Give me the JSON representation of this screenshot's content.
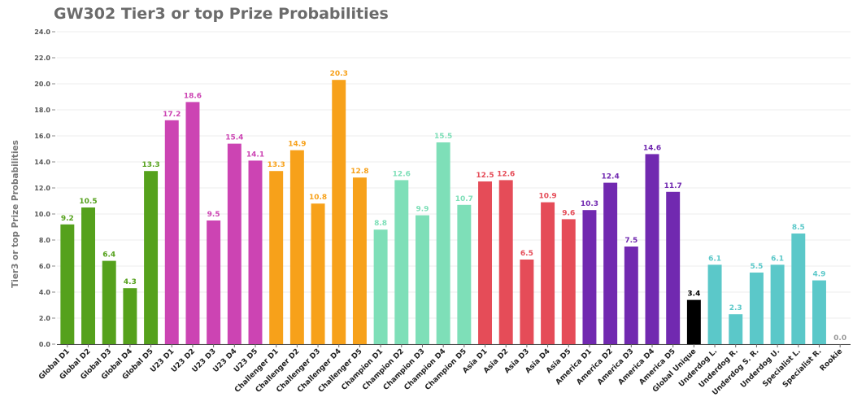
{
  "chart_data": {
    "type": "bar",
    "title": "GW302 Tier3 or top Prize Probabilities",
    "ylabel": "Tier3 or top Prize Probabilities",
    "xlabel": "",
    "ylim": [
      0,
      24
    ],
    "yticks": [
      "0.0",
      "2.0",
      "4.0",
      "6.0",
      "8.0",
      "10.0",
      "12.0",
      "14.0",
      "16.0",
      "18.0",
      "20.0",
      "22.0",
      "24.0"
    ],
    "grid": true,
    "categories": [
      "Global D1",
      "Global D2",
      "Global D3",
      "Global D4",
      "Global D5",
      "U23 D1",
      "U23 D2",
      "U23 D3",
      "U23 D4",
      "U23 D5",
      "Challenger D1",
      "Challenger D2",
      "Challenger D3",
      "Challenger D4",
      "Challenger D5",
      "Champion D1",
      "Champion D2",
      "Champion D3",
      "Champion D4",
      "Champion D5",
      "Asia D1",
      "Asia D2",
      "Asia D3",
      "Asia D4",
      "Asia D5",
      "America D1",
      "America D2",
      "America D3",
      "America D4",
      "America D5",
      "Global Unique",
      "Underdog L.",
      "Underdog R.",
      "Underdog S. R.",
      "Underdog U.",
      "Specialist L.",
      "Specialist R.",
      "Rookie"
    ],
    "values": [
      9.2,
      10.5,
      6.4,
      4.3,
      13.3,
      17.2,
      18.6,
      9.5,
      15.4,
      14.1,
      13.3,
      14.9,
      10.8,
      20.3,
      12.8,
      8.8,
      12.6,
      9.9,
      15.5,
      10.7,
      12.5,
      12.6,
      6.5,
      10.9,
      9.6,
      10.3,
      12.4,
      7.5,
      14.6,
      11.7,
      3.4,
      6.1,
      2.3,
      5.5,
      6.1,
      8.5,
      4.9,
      0.0
    ],
    "value_labels": [
      "9.2",
      "10.5",
      "6.4",
      "4.3",
      "13.3",
      "17.2",
      "18.6",
      "9.5",
      "15.4",
      "14.1",
      "13.3",
      "14.9",
      "10.8",
      "20.3",
      "12.8",
      "8.8",
      "12.6",
      "9.9",
      "15.5",
      "10.7",
      "12.5",
      "12.6",
      "6.5",
      "10.9",
      "9.6",
      "10.3",
      "12.4",
      "7.5",
      "14.6",
      "11.7",
      "3.4",
      "6.1",
      "2.3",
      "5.5",
      "6.1",
      "8.5",
      "4.9",
      "0.0"
    ],
    "colors": [
      "#55a11c",
      "#55a11c",
      "#55a11c",
      "#55a11c",
      "#55a11c",
      "#cc44b3",
      "#cc44b3",
      "#cc44b3",
      "#cc44b3",
      "#cc44b3",
      "#f7a11a",
      "#f7a11a",
      "#f7a11a",
      "#f7a11a",
      "#f7a11a",
      "#7edfb8",
      "#7edfb8",
      "#7edfb8",
      "#7edfb8",
      "#7edfb8",
      "#e54c58",
      "#e54c58",
      "#e54c58",
      "#e54c58",
      "#e54c58",
      "#7129b0",
      "#7129b0",
      "#7129b0",
      "#7129b0",
      "#7129b0",
      "#000000",
      "#5bc8c9",
      "#5bc8c9",
      "#5bc8c9",
      "#5bc8c9",
      "#5bc8c9",
      "#5bc8c9",
      "#5bc8c9"
    ],
    "label_colors": [
      "#55a11c",
      "#55a11c",
      "#55a11c",
      "#55a11c",
      "#55a11c",
      "#cc44b3",
      "#cc44b3",
      "#cc44b3",
      "#cc44b3",
      "#cc44b3",
      "#f7a11a",
      "#f7a11a",
      "#f7a11a",
      "#f7a11a",
      "#f7a11a",
      "#7edfb8",
      "#7edfb8",
      "#7edfb8",
      "#7edfb8",
      "#7edfb8",
      "#e54c58",
      "#e54c58",
      "#e54c58",
      "#e54c58",
      "#e54c58",
      "#7129b0",
      "#7129b0",
      "#7129b0",
      "#7129b0",
      "#7129b0",
      "#000000",
      "#5bc8c9",
      "#5bc8c9",
      "#5bc8c9",
      "#5bc8c9",
      "#5bc8c9",
      "#5bc8c9",
      "#999999"
    ]
  }
}
